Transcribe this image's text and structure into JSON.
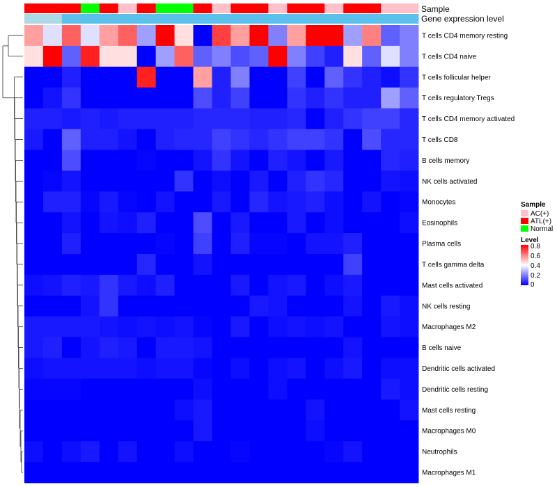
{
  "chart_data": {
    "type": "heatmap",
    "annotation_tracks": [
      {
        "name": "Sample"
      },
      {
        "name": "Gene expression level"
      }
    ],
    "sample_annotation": [
      "ATL(+)",
      "ATL(+)",
      "ATL(+)",
      "Normal",
      "ATL(+)",
      "AC(+)",
      "ATL(+)",
      "Normal",
      "Normal",
      "ATL(+)",
      "AC(+)",
      "ATL(+)",
      "ATL(+)",
      "AC(+)",
      "ATL(+)",
      "ATL(+)",
      "AC(+)",
      "ATL(+)",
      "ATL(+)",
      "AC(+)",
      "AC(+)"
    ],
    "expression_level_annotation": [
      "high",
      "high",
      "low",
      "low",
      "low",
      "low",
      "low",
      "low",
      "low",
      "low",
      "low",
      "low",
      "low",
      "low",
      "low",
      "low",
      "low",
      "low",
      "low",
      "low",
      "low"
    ],
    "rows": [
      "T cells CD4 memory resting",
      "T cells CD4 naive",
      "T cells follicular helper",
      "T cells regulatory  Tregs",
      "T cells CD4 memory activated",
      "T cells CD8",
      "B cells memory",
      "NK cells activated",
      "Monocytes",
      "Eosinophils",
      "Plasma cells",
      "T cells gamma delta",
      "Mast cells activated",
      "NK cells resting",
      "Macrophages M2",
      "B cells naive",
      "Dendritic cells activated",
      "Dendritic cells resting",
      "Mast cells resting",
      "Macrophages M0",
      "Neutrophils",
      "Macrophages M1"
    ],
    "values": [
      [
        0.55,
        0.35,
        0.65,
        0.35,
        0.55,
        0.65,
        0.25,
        0.8,
        0.45,
        0.0,
        0.7,
        0.55,
        0.8,
        0.2,
        0.55,
        0.8,
        0.8,
        0.25,
        0.6,
        0.15,
        0.2
      ],
      [
        0.45,
        0.8,
        0.15,
        0.75,
        0.45,
        0.45,
        0.0,
        0.25,
        0.65,
        0.15,
        0.2,
        0.12,
        0.15,
        0.8,
        0.2,
        0.1,
        0.05,
        0.45,
        0.15,
        0.35,
        0.2
      ],
      [
        0.0,
        0.0,
        0.05,
        0.0,
        0.0,
        0.0,
        0.75,
        0.0,
        0.0,
        0.55,
        0.05,
        0.2,
        0.0,
        0.0,
        0.1,
        0.0,
        0.15,
        0.08,
        0.05,
        0.02,
        0.08
      ],
      [
        0.0,
        0.03,
        0.08,
        0.0,
        0.0,
        0.0,
        0.0,
        0.0,
        0.0,
        0.12,
        0.05,
        0.1,
        0.0,
        0.0,
        0.08,
        0.05,
        0.08,
        0.05,
        0.05,
        0.25,
        0.15
      ],
      [
        0.05,
        0.05,
        0.04,
        0.05,
        0.04,
        0.05,
        0.05,
        0.05,
        0.05,
        0.06,
        0.06,
        0.06,
        0.05,
        0.05,
        0.06,
        0.0,
        0.05,
        0.08,
        0.1,
        0.1,
        0.06
      ],
      [
        0.04,
        0.0,
        0.15,
        0.05,
        0.05,
        0.03,
        0.0,
        0.05,
        0.06,
        0.06,
        0.1,
        0.08,
        0.06,
        0.08,
        0.1,
        0.1,
        0.08,
        0.0,
        0.12,
        0.06,
        0.06
      ],
      [
        0.0,
        0.0,
        0.12,
        0.0,
        0.0,
        0.0,
        0.01,
        0.0,
        0.0,
        0.03,
        0.08,
        0.03,
        0.0,
        0.05,
        0.03,
        0.0,
        0.04,
        0.0,
        0.0,
        0.06,
        0.05
      ],
      [
        0.0,
        0.01,
        0.03,
        0.0,
        0.0,
        0.0,
        0.0,
        0.0,
        0.08,
        0.0,
        0.02,
        0.0,
        0.04,
        0.0,
        0.05,
        0.08,
        0.06,
        0.0,
        0.0,
        0.03,
        0.02
      ],
      [
        0.0,
        0.05,
        0.05,
        0.01,
        0.04,
        0.01,
        0.0,
        0.03,
        0.0,
        0.0,
        0.04,
        0.0,
        0.06,
        0.03,
        0.04,
        0.05,
        0.02,
        0.0,
        0.03,
        0.0,
        0.01
      ],
      [
        0.0,
        0.0,
        0.03,
        0.0,
        0.03,
        0.02,
        0.05,
        0.0,
        0.0,
        0.12,
        0.0,
        0.04,
        0.0,
        0.0,
        0.04,
        0.0,
        0.02,
        0.0,
        0.0,
        0.0,
        0.02
      ],
      [
        0.0,
        0.0,
        0.05,
        0.0,
        0.0,
        0.0,
        0.0,
        0.01,
        0.0,
        0.1,
        0.0,
        0.05,
        0.01,
        0.01,
        0.0,
        0.03,
        0.03,
        0.05,
        0.0,
        0.0,
        0.0
      ],
      [
        0.0,
        0.0,
        0.0,
        0.0,
        0.0,
        0.0,
        0.06,
        0.0,
        0.0,
        0.03,
        0.0,
        0.0,
        0.0,
        0.0,
        0.0,
        0.0,
        0.0,
        0.1,
        0.0,
        0.0,
        0.0
      ],
      [
        0.02,
        0.03,
        0.05,
        0.04,
        0.08,
        0.04,
        0.02,
        0.05,
        0.0,
        0.0,
        0.0,
        0.04,
        0.0,
        0.03,
        0.04,
        0.0,
        0.02,
        0.04,
        0.0,
        0.0,
        0.0
      ],
      [
        0.0,
        0.0,
        0.0,
        0.03,
        0.08,
        0.0,
        0.0,
        0.0,
        0.0,
        0.0,
        0.0,
        0.0,
        0.04,
        0.03,
        0.0,
        0.0,
        0.0,
        0.03,
        0.0,
        0.04,
        0.02
      ],
      [
        0.04,
        0.04,
        0.04,
        0.04,
        0.03,
        0.02,
        0.03,
        0.02,
        0.03,
        0.01,
        0.0,
        0.04,
        0.0,
        0.02,
        0.03,
        0.02,
        0.03,
        0.0,
        0.0,
        0.03,
        0.02
      ],
      [
        0.04,
        0.05,
        0.0,
        0.03,
        0.05,
        0.04,
        0.0,
        0.04,
        0.04,
        0.03,
        0.0,
        0.0,
        0.0,
        0.0,
        0.0,
        0.0,
        0.0,
        0.03,
        0.0,
        0.0,
        0.0
      ],
      [
        0.02,
        0.03,
        0.03,
        0.03,
        0.03,
        0.03,
        0.02,
        0.03,
        0.03,
        0.01,
        0.0,
        0.02,
        0.0,
        0.02,
        0.03,
        0.0,
        0.02,
        0.04,
        0.0,
        0.02,
        0.02
      ],
      [
        0.01,
        0.01,
        0.01,
        0.0,
        0.0,
        0.0,
        0.0,
        0.0,
        0.0,
        0.02,
        0.0,
        0.0,
        0.0,
        0.02,
        0.0,
        0.0,
        0.0,
        0.0,
        0.0,
        0.04,
        0.02
      ],
      [
        0.0,
        0.0,
        0.0,
        0.0,
        0.0,
        0.0,
        0.0,
        0.0,
        0.02,
        0.04,
        0.0,
        0.0,
        0.0,
        0.0,
        0.0,
        0.03,
        0.0,
        0.0,
        0.0,
        0.0,
        0.03
      ],
      [
        0.0,
        0.0,
        0.0,
        0.0,
        0.0,
        0.0,
        0.0,
        0.0,
        0.0,
        0.04,
        0.0,
        0.0,
        0.0,
        0.0,
        0.0,
        0.02,
        0.0,
        0.0,
        0.0,
        0.0,
        0.0
      ],
      [
        0.02,
        0.0,
        0.02,
        0.04,
        0.0,
        0.03,
        0.0,
        0.0,
        0.02,
        0.0,
        0.0,
        0.01,
        0.0,
        0.0,
        0.0,
        0.0,
        0.01,
        0.03,
        0.0,
        0.0,
        0.0
      ],
      [
        0.0,
        0.0,
        0.0,
        0.0,
        0.0,
        0.0,
        0.0,
        0.0,
        0.0,
        0.0,
        0.0,
        0.0,
        0.0,
        0.0,
        0.0,
        0.0,
        0.0,
        0.0,
        0.0,
        0.0,
        0.0
      ]
    ],
    "color_scale": {
      "min": 0,
      "max": 0.8,
      "stops": [
        {
          "value": 0,
          "color": "#0000ff"
        },
        {
          "value": 0.4,
          "color": "#ffffff"
        },
        {
          "value": 0.8,
          "color": "#ff0000"
        }
      ]
    },
    "legend": {
      "position": "right",
      "sample_title": "Sample",
      "sample_items": [
        {
          "label": "AC(+)",
          "color": "#ffc0cb"
        },
        {
          "label": "ATL(+)",
          "color": "#ff0000"
        },
        {
          "label": "Normal",
          "color": "#00ff00"
        }
      ],
      "level_title": "Level",
      "level_ticks": [
        "0.8",
        "0.6",
        "0.4",
        "0.2",
        "0"
      ]
    },
    "annotation_colors": {
      "expression_high": "#add8e6",
      "expression_low": "#5bc0eb"
    },
    "dendrogram": true
  }
}
